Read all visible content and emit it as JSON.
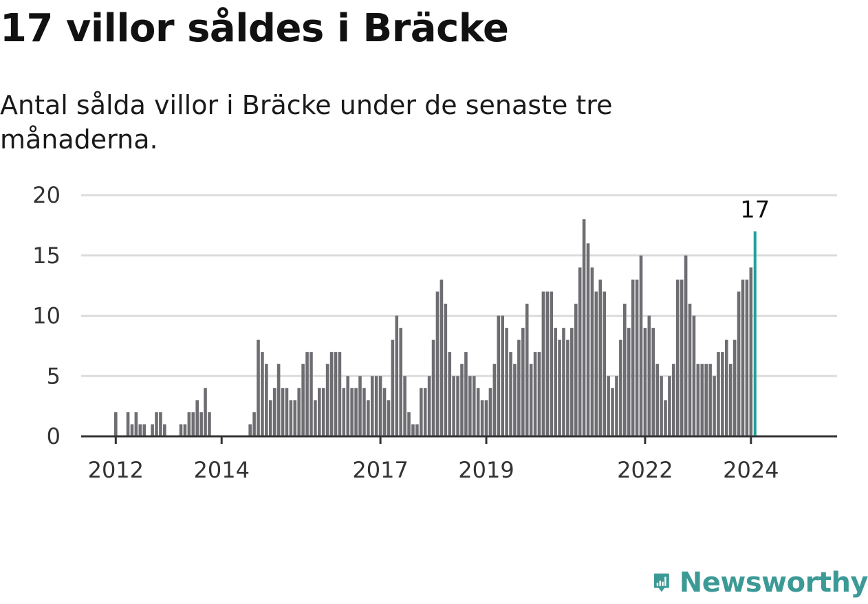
{
  "title": "17 villor såldes i Bräcke",
  "subtitle": "Antal sålda villor i Bräcke under de senaste tre månaderna.",
  "brand": {
    "name": "Newsworthy",
    "icon": "newsworthy-logo-icon",
    "color": "#3c9a96"
  },
  "chart_data": {
    "type": "bar",
    "title": "17 villor såldes i Bräcke",
    "subtitle": "Antal sålda villor i Bräcke under de senaste tre månaderna.",
    "xlabel": "",
    "ylabel": "",
    "ylim": [
      0,
      20
    ],
    "yticks": [
      0,
      5,
      10,
      15,
      20
    ],
    "xtick_labels": [
      {
        "label": "2012",
        "bar_index": 0
      },
      {
        "label": "2014",
        "bar_index": 26
      },
      {
        "label": "2017",
        "bar_index": 65
      },
      {
        "label": "2019",
        "bar_index": 91
      },
      {
        "label": "2022",
        "bar_index": 130
      },
      {
        "label": "2024",
        "bar_index": 156
      }
    ],
    "first_period": "2012-01",
    "period_step_months": 1,
    "grid": true,
    "bar_color": "#6e6d72",
    "highlight_color": "#1aa39a",
    "highlight_last": true,
    "highlight_label": "17",
    "values": [
      2,
      0,
      0,
      2,
      1,
      2,
      1,
      1,
      0,
      1,
      2,
      2,
      1,
      0,
      0,
      0,
      1,
      1,
      2,
      2,
      3,
      2,
      4,
      2,
      0,
      0,
      0,
      0,
      0,
      0,
      0,
      0,
      0,
      1,
      2,
      8,
      7,
      6,
      3,
      4,
      6,
      4,
      4,
      3,
      3,
      4,
      6,
      7,
      7,
      3,
      4,
      4,
      6,
      7,
      7,
      7,
      4,
      5,
      4,
      4,
      5,
      4,
      3,
      5,
      5,
      5,
      4,
      3,
      8,
      10,
      9,
      5,
      2,
      1,
      1,
      4,
      4,
      5,
      8,
      12,
      13,
      11,
      7,
      5,
      5,
      6,
      7,
      5,
      5,
      4,
      3,
      3,
      4,
      6,
      10,
      10,
      9,
      7,
      6,
      8,
      9,
      11,
      6,
      7,
      7,
      12,
      12,
      12,
      9,
      8,
      9,
      8,
      9,
      11,
      14,
      18,
      16,
      14,
      12,
      13,
      12,
      5,
      4,
      5,
      8,
      11,
      9,
      13,
      13,
      15,
      9,
      10,
      9,
      6,
      5,
      3,
      5,
      6,
      13,
      13,
      15,
      11,
      10,
      6,
      6,
      6,
      6,
      5,
      7,
      7,
      8,
      6,
      8,
      12,
      13,
      13,
      14,
      17
    ]
  }
}
